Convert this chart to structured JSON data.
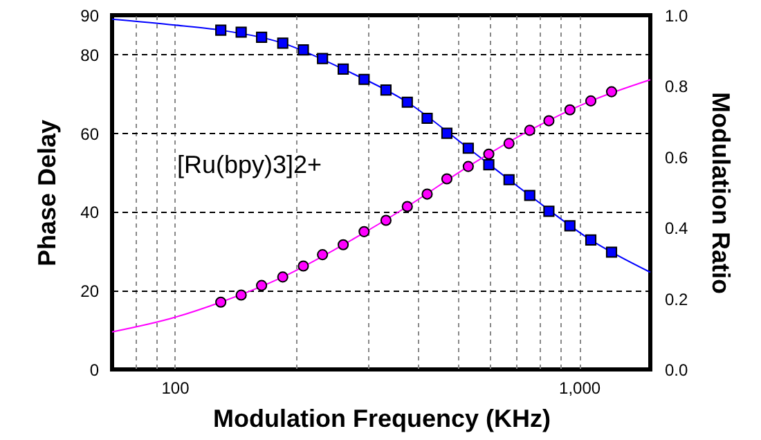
{
  "chart_data": {
    "type": "scatter",
    "xlabel": "Modulation Frequency (KHz)",
    "ylabel": "Phase Delay",
    "y2label": "Modulation Ratio",
    "annotations": [
      "[Ru(bpy)3]2+"
    ],
    "log": "x",
    "grid": true,
    "xlim": [
      70,
      1500
    ],
    "xticks": [
      {
        "value": 80,
        "label": null
      },
      {
        "value": 90,
        "label": null
      },
      100,
      {
        "value": 200,
        "label": null
      },
      {
        "value": 300,
        "label": null
      },
      {
        "value": 400,
        "label": null
      },
      {
        "value": 500,
        "label": null
      },
      {
        "value": 600,
        "label": null
      },
      {
        "value": 700,
        "label": null
      },
      {
        "value": 800,
        "label": null
      },
      {
        "value": 900,
        "label": null
      },
      {
        "value": 1000,
        "label": "1,000"
      }
    ],
    "ylim": [
      0,
      90
    ],
    "yticks": [
      0,
      20,
      40,
      60,
      80,
      90
    ],
    "y2lim": [
      0,
      1.0
    ],
    "y2ticks": [
      {
        "value": 0,
        "label": "0.0"
      },
      0.2,
      0.4,
      0.6,
      0.8,
      {
        "value": 1,
        "label": "1.0"
      }
    ],
    "x": [
      130,
      146,
      164,
      185,
      208,
      232,
      261,
      294,
      333,
      376,
      421,
      471,
      532,
      598,
      671,
      755,
      842,
      949,
      1069,
      1203
    ],
    "series": [
      {
        "type": "line",
        "color": "#0000ff",
        "marker": "none",
        "x": [
          70,
          100,
          130,
          185,
          261,
          376,
          532,
          755,
          1069,
          1500
        ],
        "values": [
          89.0,
          87.5,
          86.2,
          82.9,
          76.3,
          67.9,
          56.2,
          44.2,
          32.9,
          24.7
        ]
      },
      {
        "color": "#0000ff",
        "marker": "square",
        "values": [
          86.2,
          85.7,
          84.4,
          82.9,
          81.2,
          79.0,
          76.3,
          73.7,
          71.0,
          67.9,
          63.8,
          60.0,
          56.2,
          52.0,
          48.2,
          44.2,
          40.2,
          36.5,
          32.9,
          29.8
        ]
      },
      {
        "type": "line",
        "color": "#ff00ff",
        "axis": "y2",
        "marker": "none",
        "x": [
          70,
          100,
          130,
          185,
          261,
          376,
          532,
          755,
          1069,
          1500
        ],
        "values": [
          0.106,
          0.147,
          0.19,
          0.261,
          0.352,
          0.46,
          0.573,
          0.675,
          0.758,
          0.818
        ]
      },
      {
        "color": "#ff00ff",
        "axis": "y2",
        "marker": "circle",
        "values": [
          0.19,
          0.21,
          0.237,
          0.261,
          0.292,
          0.324,
          0.352,
          0.389,
          0.421,
          0.46,
          0.495,
          0.538,
          0.573,
          0.608,
          0.638,
          0.675,
          0.702,
          0.733,
          0.758,
          0.784
        ]
      }
    ]
  }
}
